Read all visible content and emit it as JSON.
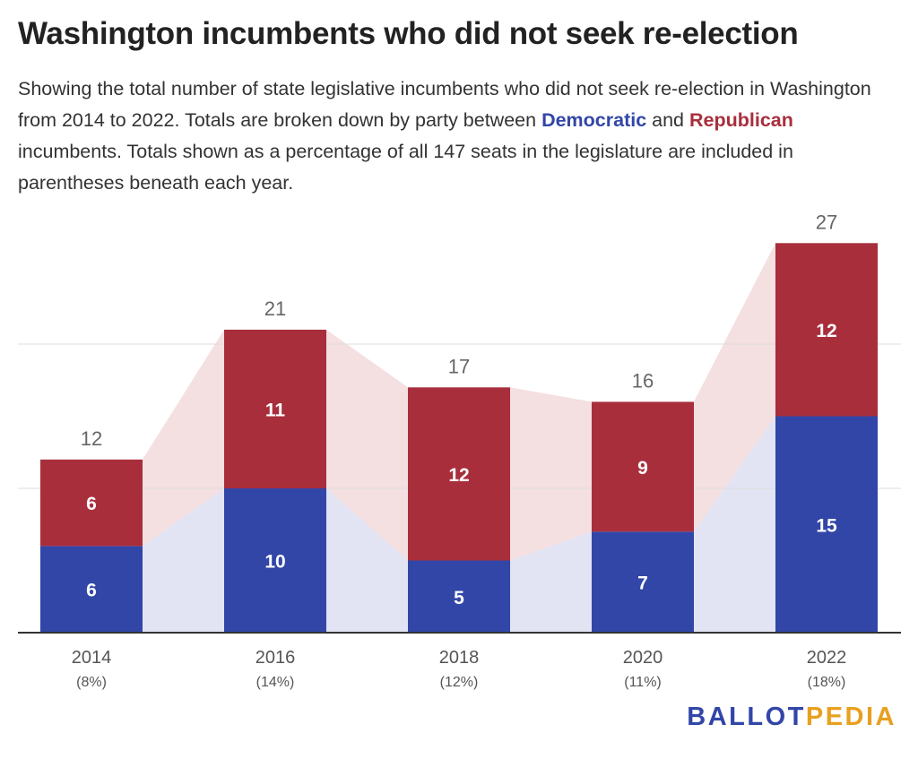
{
  "title": "Washington incumbents who did not seek re-election",
  "subtitle": {
    "part1": "Showing the total number of state legislative incumbents who did not seek re-election in Washington from 2014 to 2022. Totals are broken down by party between ",
    "dem_word": "Democratic",
    "part2": " and ",
    "rep_word": "Republican",
    "part3": " incumbents. Totals shown as a percentage of all 147 seats in the legislature are included in parentheses beneath each year."
  },
  "logo": {
    "part1": "BALLOT",
    "part2": "PEDIA"
  },
  "colors": {
    "democratic": "#3246a8",
    "republican": "#a82e3c",
    "dem_area": "#e2e4f3",
    "rep_area": "#f4dfe1",
    "grid": "#dddddd",
    "axis": "#333333"
  },
  "chart_data": {
    "type": "bar",
    "stacked": true,
    "categories": [
      "2014",
      "2016",
      "2018",
      "2020",
      "2022"
    ],
    "category_sublabels": [
      "(8%)",
      "(14%)",
      "(12%)",
      "(11%)",
      "(18%)"
    ],
    "series": [
      {
        "name": "Democratic",
        "values": [
          6,
          10,
          5,
          7,
          15
        ]
      },
      {
        "name": "Republican",
        "values": [
          6,
          11,
          12,
          9,
          12
        ]
      }
    ],
    "totals": [
      12,
      21,
      17,
      16,
      27
    ],
    "ylim": [
      0,
      30
    ],
    "gridlines": [
      10,
      20
    ],
    "connector_areas": true
  }
}
